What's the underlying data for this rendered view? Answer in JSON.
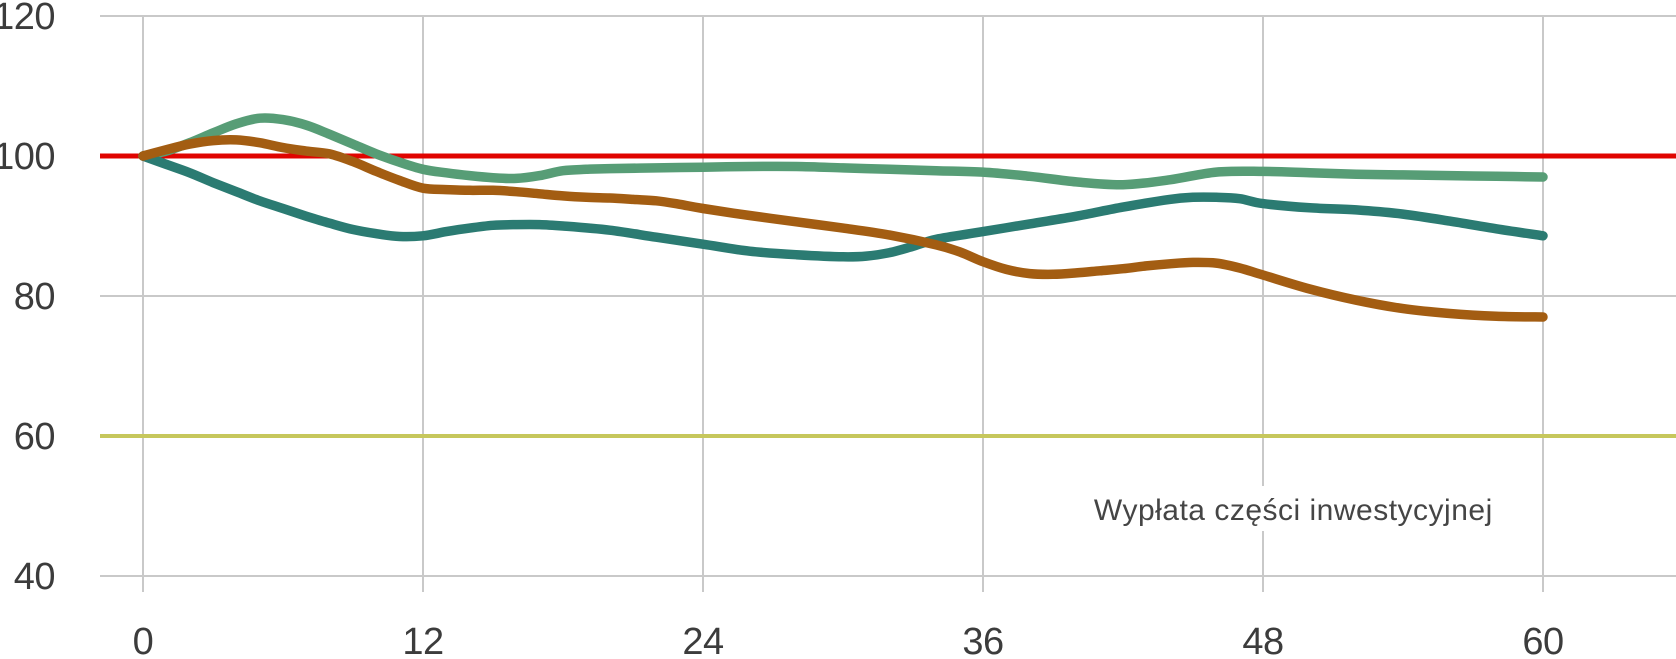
{
  "chart_data": {
    "type": "line",
    "title": "",
    "xlabel": "",
    "ylabel": "",
    "xlim": [
      0,
      60
    ],
    "ylim": [
      40,
      120
    ],
    "x_ticks": [
      0,
      12,
      24,
      36,
      48,
      60
    ],
    "y_ticks": [
      40,
      60,
      80,
      100,
      120
    ],
    "grid": true,
    "legend": "none",
    "annotation": {
      "text": "Wypłata części inwestycyjnej",
      "x": 49.3,
      "y": 48
    },
    "reference_lines": [
      {
        "name": "level-100-line",
        "y": 100,
        "color": "#e00400",
        "width": 5
      },
      {
        "name": "level-60-line",
        "y": 60,
        "color": "#c6c75c",
        "width": 4
      }
    ],
    "series": [
      {
        "name": "green",
        "color": "#579d76",
        "points": [
          [
            0,
            100
          ],
          [
            1,
            100.7
          ],
          [
            2,
            101.9
          ],
          [
            3,
            103.3
          ],
          [
            4,
            104.6
          ],
          [
            5,
            105.4
          ],
          [
            6,
            105.2
          ],
          [
            7,
            104.4
          ],
          [
            8,
            103.1
          ],
          [
            9,
            101.7
          ],
          [
            10,
            100.3
          ],
          [
            11,
            99.1
          ],
          [
            12,
            98.1
          ],
          [
            13,
            97.6
          ],
          [
            14,
            97.2
          ],
          [
            15,
            96.9
          ],
          [
            16,
            96.8
          ],
          [
            17,
            97.2
          ],
          [
            18,
            97.9
          ],
          [
            19,
            98.1
          ],
          [
            20,
            98.2
          ],
          [
            22,
            98.3
          ],
          [
            24,
            98.4
          ],
          [
            26,
            98.5
          ],
          [
            28,
            98.5
          ],
          [
            30,
            98.3
          ],
          [
            32,
            98.1
          ],
          [
            34,
            97.9
          ],
          [
            36,
            97.7
          ],
          [
            38,
            97.1
          ],
          [
            40,
            96.3
          ],
          [
            42,
            95.9
          ],
          [
            44,
            96.6
          ],
          [
            46,
            97.7
          ],
          [
            48,
            97.8
          ],
          [
            50,
            97.6
          ],
          [
            52,
            97.4
          ],
          [
            54,
            97.3
          ],
          [
            56,
            97.2
          ],
          [
            58,
            97.1
          ],
          [
            60,
            97
          ]
        ]
      },
      {
        "name": "teal",
        "color": "#2b7b72",
        "points": [
          [
            0,
            100
          ],
          [
            1,
            98.8
          ],
          [
            2,
            97.6
          ],
          [
            3,
            96.2
          ],
          [
            4,
            94.9
          ],
          [
            5,
            93.6
          ],
          [
            6,
            92.5
          ],
          [
            7,
            91.4
          ],
          [
            8,
            90.4
          ],
          [
            9,
            89.5
          ],
          [
            10,
            88.9
          ],
          [
            11,
            88.5
          ],
          [
            12,
            88.6
          ],
          [
            13,
            89.2
          ],
          [
            14,
            89.7
          ],
          [
            15,
            90.1
          ],
          [
            16,
            90.2
          ],
          [
            17,
            90.2
          ],
          [
            18,
            90
          ],
          [
            20,
            89.4
          ],
          [
            22,
            88.4
          ],
          [
            24,
            87.4
          ],
          [
            26,
            86.4
          ],
          [
            28,
            85.9
          ],
          [
            30,
            85.6
          ],
          [
            31,
            85.7
          ],
          [
            32,
            86.2
          ],
          [
            33,
            87.1
          ],
          [
            34,
            88.1
          ],
          [
            36,
            89.2
          ],
          [
            38,
            90.3
          ],
          [
            40,
            91.4
          ],
          [
            42,
            92.7
          ],
          [
            44,
            93.8
          ],
          [
            45,
            94.1
          ],
          [
            46,
            94.1
          ],
          [
            47,
            93.9
          ],
          [
            48,
            93.2
          ],
          [
            50,
            92.6
          ],
          [
            52,
            92.3
          ],
          [
            54,
            91.7
          ],
          [
            56,
            90.7
          ],
          [
            58,
            89.6
          ],
          [
            60,
            88.6
          ]
        ]
      },
      {
        "name": "brown",
        "color": "#a35d12",
        "points": [
          [
            0,
            100
          ],
          [
            1,
            100.9
          ],
          [
            2,
            101.7
          ],
          [
            3,
            102.2
          ],
          [
            4,
            102.3
          ],
          [
            5,
            101.9
          ],
          [
            6,
            101.2
          ],
          [
            7,
            100.7
          ],
          [
            8,
            100.3
          ],
          [
            9,
            99.2
          ],
          [
            10,
            97.8
          ],
          [
            11,
            96.5
          ],
          [
            12,
            95.4
          ],
          [
            13,
            95.2
          ],
          [
            14,
            95.1
          ],
          [
            15,
            95.1
          ],
          [
            16,
            94.9
          ],
          [
            17,
            94.6
          ],
          [
            18,
            94.3
          ],
          [
            19,
            94.1
          ],
          [
            20,
            94
          ],
          [
            21,
            93.8
          ],
          [
            22,
            93.6
          ],
          [
            23,
            93.1
          ],
          [
            24,
            92.5
          ],
          [
            26,
            91.5
          ],
          [
            28,
            90.6
          ],
          [
            30,
            89.7
          ],
          [
            32,
            88.7
          ],
          [
            34,
            87.3
          ],
          [
            35,
            86.3
          ],
          [
            36,
            84.9
          ],
          [
            37,
            83.8
          ],
          [
            38,
            83.2
          ],
          [
            39,
            83.1
          ],
          [
            40,
            83.3
          ],
          [
            41,
            83.6
          ],
          [
            42,
            83.9
          ],
          [
            43,
            84.3
          ],
          [
            44,
            84.6
          ],
          [
            45,
            84.8
          ],
          [
            46,
            84.7
          ],
          [
            47,
            84
          ],
          [
            48,
            83
          ],
          [
            50,
            81
          ],
          [
            52,
            79.4
          ],
          [
            54,
            78.2
          ],
          [
            56,
            77.5
          ],
          [
            58,
            77.1
          ],
          [
            60,
            77
          ]
        ]
      }
    ]
  },
  "style": {
    "grid_color": "#c9c9c9",
    "tick_label_color": "#3c3c3c",
    "annotation_color": "#454545",
    "background": "#ffffff",
    "series_stroke_width": 9.5,
    "grid_stroke_width": 2
  }
}
